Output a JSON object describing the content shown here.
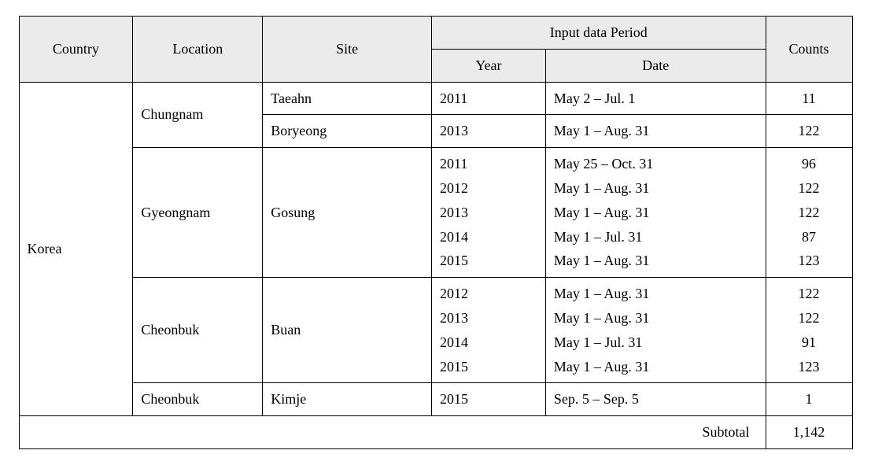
{
  "table": {
    "header_bg": "#ebebeb",
    "border_color": "#000000",
    "font_family": "Times New Roman, serif",
    "header_fontsize": 18,
    "cell_fontsize": 18,
    "columns": {
      "country": "Country",
      "location": "Location",
      "site": "Site",
      "input_period": "Input data Period",
      "year": "Year",
      "date": "Date",
      "counts": "Counts"
    },
    "country": "Korea",
    "rows": [
      {
        "location": "Chungnam",
        "site": "Taeahn",
        "year": "2011",
        "date": "May 2 – Jul. 1",
        "counts": "11"
      },
      {
        "site": "Boryeong",
        "year": "2013",
        "date": "May 1  –  Aug. 31",
        "counts": "122"
      },
      {
        "location": "Gyeongnam",
        "site": "Gosung",
        "years": [
          "2011",
          "2012",
          "2013",
          "2014",
          "2015"
        ],
        "dates": [
          "May 25  –  Oct. 31",
          "May 1  –  Aug. 31",
          "May 1  –  Aug. 31",
          "May 1  –  Jul. 31",
          "May 1  –  Aug. 31"
        ],
        "counts_list": [
          "96",
          "122",
          "122",
          "87",
          "123"
        ]
      },
      {
        "location": "Cheonbuk",
        "site": "Buan",
        "years": [
          "2012",
          "2013",
          "2014",
          "2015"
        ],
        "dates": [
          "May 1  –  Aug. 31",
          "May 1  –  Aug. 31",
          "May 1  –  Jul. 31",
          "May 1  –  Aug. 31"
        ],
        "counts_list": [
          "122",
          "122",
          "91",
          "123"
        ]
      },
      {
        "location": "Cheonbuk",
        "site": "Kimje",
        "year": "2015",
        "date": "Sep. 5 – Sep. 5",
        "counts": "1"
      }
    ],
    "subtotal_label": "Subtotal",
    "subtotal_value": "1,142"
  }
}
